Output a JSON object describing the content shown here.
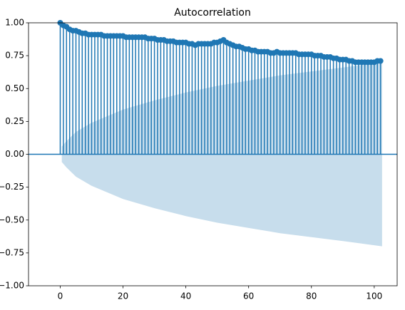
{
  "chart_data": {
    "type": "stem",
    "title": "Autocorrelation",
    "x": [
      0,
      1,
      2,
      3,
      4,
      5,
      6,
      7,
      8,
      9,
      10,
      11,
      12,
      13,
      14,
      15,
      16,
      17,
      18,
      19,
      20,
      21,
      22,
      23,
      24,
      25,
      26,
      27,
      28,
      29,
      30,
      31,
      32,
      33,
      34,
      35,
      36,
      37,
      38,
      39,
      40,
      41,
      42,
      43,
      44,
      45,
      46,
      47,
      48,
      49,
      50,
      51,
      52,
      53,
      54,
      55,
      56,
      57,
      58,
      59,
      60,
      61,
      62,
      63,
      64,
      65,
      66,
      67,
      68,
      69,
      70,
      71,
      72,
      73,
      74,
      75,
      76,
      77,
      78,
      79,
      80,
      81,
      82,
      83,
      84,
      85,
      86,
      87,
      88,
      89,
      90,
      91,
      92,
      93,
      94,
      95,
      96,
      97,
      98,
      99,
      100,
      101,
      102
    ],
    "values": [
      1.0,
      0.98,
      0.97,
      0.95,
      0.94,
      0.94,
      0.93,
      0.92,
      0.92,
      0.91,
      0.91,
      0.91,
      0.91,
      0.91,
      0.9,
      0.9,
      0.9,
      0.9,
      0.9,
      0.9,
      0.9,
      0.89,
      0.89,
      0.89,
      0.89,
      0.89,
      0.89,
      0.89,
      0.88,
      0.88,
      0.88,
      0.87,
      0.87,
      0.87,
      0.86,
      0.86,
      0.86,
      0.85,
      0.85,
      0.85,
      0.85,
      0.84,
      0.84,
      0.83,
      0.84,
      0.84,
      0.84,
      0.84,
      0.84,
      0.85,
      0.85,
      0.86,
      0.87,
      0.85,
      0.84,
      0.83,
      0.82,
      0.82,
      0.81,
      0.8,
      0.8,
      0.79,
      0.79,
      0.78,
      0.78,
      0.78,
      0.78,
      0.77,
      0.77,
      0.78,
      0.77,
      0.77,
      0.77,
      0.77,
      0.77,
      0.77,
      0.76,
      0.76,
      0.76,
      0.76,
      0.76,
      0.75,
      0.75,
      0.75,
      0.74,
      0.74,
      0.74,
      0.73,
      0.73,
      0.72,
      0.72,
      0.72,
      0.71,
      0.71,
      0.7,
      0.7,
      0.7,
      0.7,
      0.7,
      0.7,
      0.7,
      0.71,
      0.71
    ],
    "color": "#1f77b4",
    "band": {
      "color": "#1f77b4",
      "x": [
        0.5,
        2,
        5,
        10,
        15,
        20,
        30,
        40,
        50,
        60,
        70,
        80,
        90,
        102.5
      ],
      "upper": [
        0.059,
        0.1,
        0.17,
        0.24,
        0.29,
        0.34,
        0.41,
        0.47,
        0.52,
        0.56,
        0.6,
        0.63,
        0.66,
        0.7
      ],
      "lower": [
        -0.059,
        -0.1,
        -0.17,
        -0.24,
        -0.29,
        -0.34,
        -0.41,
        -0.47,
        -0.52,
        -0.56,
        -0.6,
        -0.63,
        -0.66,
        -0.7
      ]
    },
    "xlim": [
      -10.1,
      107.3
    ],
    "xticks": [
      0,
      20,
      40,
      60,
      80,
      100
    ],
    "ylim": [
      -1,
      1
    ],
    "yticks": [
      {
        "value": -1,
        "label": "−1.00"
      },
      {
        "value": -0.75,
        "label": "−0.75"
      },
      {
        "value": -0.5,
        "label": "−0.50"
      },
      {
        "value": -0.25,
        "label": "−0.25"
      },
      {
        "value": 0,
        "label": "0.00"
      },
      {
        "value": 0.25,
        "label": "0.25"
      },
      {
        "value": 0.5,
        "label": "0.50"
      },
      {
        "value": 0.75,
        "label": "0.75"
      },
      {
        "value": 1,
        "label": "1.00"
      }
    ],
    "grid": false
  }
}
